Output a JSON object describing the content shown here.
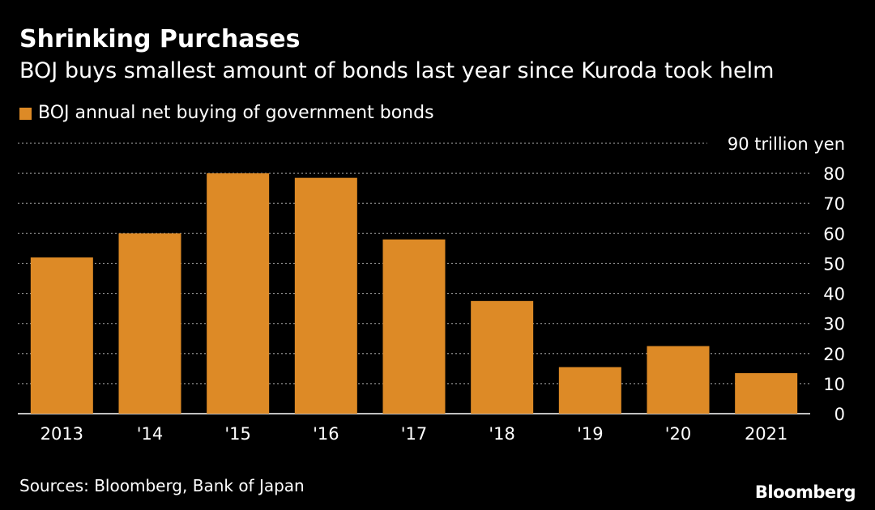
{
  "header": {
    "title": "Shrinking Purchases",
    "subtitle": "BOJ buys smallest amount of bonds last year since Kuroda took helm"
  },
  "footer": {
    "source": "Sources: Bloomberg, Bank of Japan",
    "brand": "Bloomberg"
  },
  "colors": {
    "background": "#000000",
    "bar": "#dd8a26",
    "grid": "#8c8c8c",
    "text": "#ffffff"
  },
  "chart_data": {
    "type": "bar",
    "categories": [
      "2013",
      "'14",
      "'15",
      "'16",
      "'17",
      "'18",
      "'19",
      "'20",
      "2021"
    ],
    "series": [
      {
        "name": "BOJ annual net buying of government bonds",
        "values": [
          52,
          60,
          80,
          78.5,
          58,
          37.5,
          15.5,
          22.5,
          13.5
        ]
      }
    ],
    "ylim": [
      0,
      90
    ],
    "yticks": [
      0,
      10,
      20,
      30,
      40,
      50,
      60,
      70,
      80,
      90
    ],
    "ytick_labels": [
      "0",
      "10",
      "20",
      "30",
      "40",
      "50",
      "60",
      "70",
      "80",
      "90 trillion yen"
    ],
    "y_axis_side": "right",
    "grid": true,
    "legend_position": "top-left"
  }
}
